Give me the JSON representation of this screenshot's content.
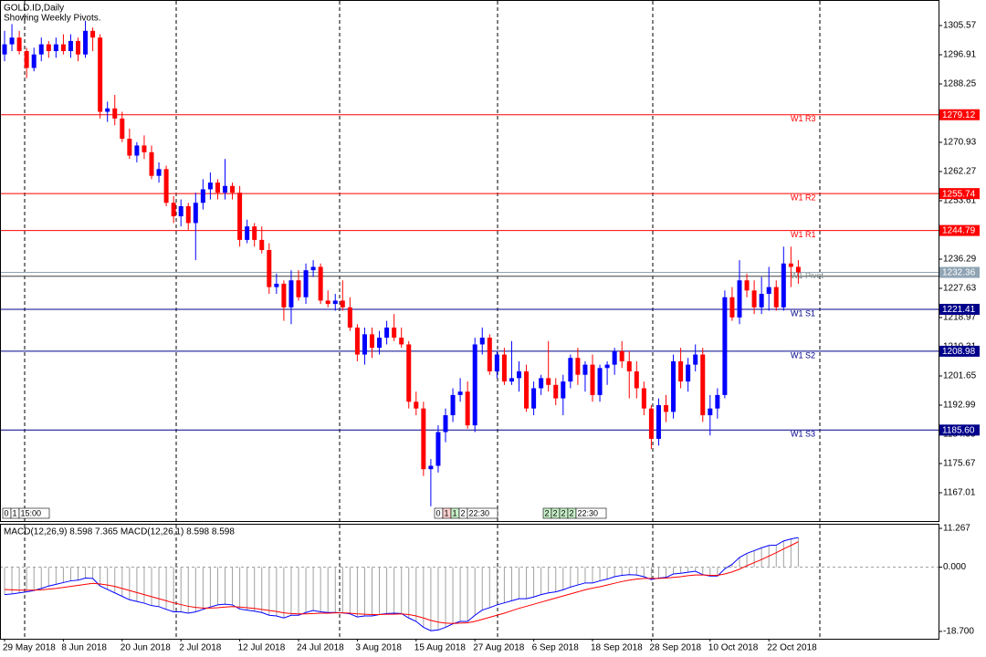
{
  "chart_data": {
    "type": "candlestick",
    "title": "GOLD.ID,Daily",
    "subtitle": "Showing Weekly Pivots.",
    "categories": [
      "29 May 2018",
      null,
      null,
      null,
      null,
      null,
      null,
      null,
      "8 Jun 2018",
      null,
      null,
      null,
      null,
      null,
      null,
      null,
      "20 Jun 2018",
      null,
      null,
      null,
      null,
      null,
      null,
      null,
      "2 Jul 2018",
      null,
      null,
      null,
      null,
      null,
      null,
      null,
      "12 Jul 2018",
      null,
      null,
      null,
      null,
      null,
      null,
      null,
      "24 Jul 2018",
      null,
      null,
      null,
      null,
      null,
      null,
      null,
      "3 Aug 2018",
      null,
      null,
      null,
      null,
      null,
      null,
      null,
      "15 Aug 2018",
      null,
      null,
      null,
      null,
      null,
      null,
      null,
      "27 Aug 2018",
      null,
      null,
      null,
      null,
      null,
      null,
      null,
      "6 Sep 2018",
      null,
      null,
      null,
      null,
      null,
      null,
      null,
      "18 Sep 2018",
      null,
      null,
      null,
      null,
      null,
      null,
      null,
      "28 Sep 2018",
      null,
      null,
      null,
      null,
      null,
      null,
      null,
      "10 Oct 2018",
      null,
      null,
      null,
      null,
      null,
      null,
      null,
      "22 Oct 2018",
      null,
      null,
      null,
      null
    ],
    "ohlc": [
      [
        1297,
        1304,
        1295,
        1300
      ],
      [
        1300,
        1306,
        1298,
        1302
      ],
      [
        1302,
        1304,
        1297,
        1298
      ],
      [
        1298,
        1299,
        1290,
        1293
      ],
      [
        1293,
        1299,
        1292,
        1297
      ],
      [
        1297,
        1302,
        1295,
        1300
      ],
      [
        1300,
        1301,
        1296,
        1298
      ],
      [
        1298,
        1302,
        1296,
        1300
      ],
      [
        1300,
        1303,
        1297,
        1298
      ],
      [
        1298,
        1303,
        1296,
        1301
      ],
      [
        1301,
        1302,
        1295,
        1297
      ],
      [
        1297,
        1307,
        1296,
        1304
      ],
      [
        1304,
        1305,
        1298,
        1302
      ],
      [
        1302,
        1303,
        1278,
        1280
      ],
      [
        1280,
        1283,
        1277,
        1281
      ],
      [
        1281,
        1285,
        1276,
        1278
      ],
      [
        1278,
        1280,
        1271,
        1272
      ],
      [
        1272,
        1275,
        1266,
        1267
      ],
      [
        1267,
        1271,
        1265,
        1270
      ],
      [
        1270,
        1273,
        1266,
        1268
      ],
      [
        1268,
        1270,
        1260,
        1261
      ],
      [
        1261,
        1265,
        1259,
        1263
      ],
      [
        1263,
        1264,
        1252,
        1253
      ],
      [
        1253,
        1255,
        1247,
        1249
      ],
      [
        1249,
        1254,
        1246,
        1252
      ],
      [
        1252,
        1253,
        1245,
        1247
      ],
      [
        1247,
        1256,
        1236,
        1253
      ],
      [
        1253,
        1260,
        1251,
        1257
      ],
      [
        1257,
        1262,
        1254,
        1259
      ],
      [
        1259,
        1260,
        1254,
        1256
      ],
      [
        1256,
        1266,
        1254,
        1258
      ],
      [
        1258,
        1259,
        1254,
        1256
      ],
      [
        1256,
        1258,
        1240,
        1242
      ],
      [
        1242,
        1248,
        1241,
        1246
      ],
      [
        1246,
        1247,
        1240,
        1242
      ],
      [
        1242,
        1246,
        1238,
        1239
      ],
      [
        1239,
        1241,
        1226,
        1228
      ],
      [
        1228,
        1232,
        1226,
        1229
      ],
      [
        1229,
        1230,
        1218,
        1222
      ],
      [
        1222,
        1233,
        1217,
        1230
      ],
      [
        1230,
        1233,
        1224,
        1225
      ],
      [
        1225,
        1235,
        1223,
        1233
      ],
      [
        1233,
        1236,
        1231,
        1234
      ],
      [
        1234,
        1235,
        1223,
        1224
      ],
      [
        1224,
        1227,
        1222,
        1223
      ],
      [
        1223,
        1226,
        1221,
        1224
      ],
      [
        1224,
        1230,
        1221,
        1222
      ],
      [
        1222,
        1225,
        1215,
        1216
      ],
      [
        1216,
        1217,
        1206,
        1208
      ],
      [
        1208,
        1216,
        1205,
        1214
      ],
      [
        1214,
        1216,
        1207,
        1210
      ],
      [
        1210,
        1215,
        1208,
        1213
      ],
      [
        1213,
        1218,
        1211,
        1216
      ],
      [
        1216,
        1220,
        1212,
        1213
      ],
      [
        1213,
        1216,
        1210,
        1211
      ],
      [
        1211,
        1212,
        1192,
        1194
      ],
      [
        1194,
        1197,
        1190,
        1192
      ],
      [
        1192,
        1194,
        1172,
        1174
      ],
      [
        1174,
        1177,
        1163,
        1175
      ],
      [
        1175,
        1187,
        1173,
        1185
      ],
      [
        1185,
        1192,
        1182,
        1190
      ],
      [
        1190,
        1198,
        1188,
        1196
      ],
      [
        1196,
        1201,
        1194,
        1197
      ],
      [
        1197,
        1200,
        1186,
        1187
      ],
      [
        1187,
        1213,
        1185,
        1211
      ],
      [
        1211,
        1216,
        1208,
        1213
      ],
      [
        1213,
        1214,
        1202,
        1203
      ],
      [
        1203,
        1209,
        1201,
        1208
      ],
      [
        1208,
        1210,
        1199,
        1200
      ],
      [
        1200,
        1212,
        1199,
        1201
      ],
      [
        1201,
        1206,
        1197,
        1203
      ],
      [
        1203,
        1205,
        1191,
        1192
      ],
      [
        1192,
        1200,
        1190,
        1198
      ],
      [
        1198,
        1202,
        1196,
        1201
      ],
      [
        1201,
        1212,
        1197,
        1199
      ],
      [
        1199,
        1201,
        1193,
        1195
      ],
      [
        1195,
        1202,
        1190,
        1200
      ],
      [
        1200,
        1208,
        1198,
        1207
      ],
      [
        1207,
        1210,
        1199,
        1202
      ],
      [
        1202,
        1206,
        1197,
        1205
      ],
      [
        1205,
        1208,
        1194,
        1196
      ],
      [
        1196,
        1205,
        1194,
        1204
      ],
      [
        1204,
        1206,
        1199,
        1205
      ],
      [
        1205,
        1210,
        1202,
        1209
      ],
      [
        1209,
        1212,
        1204,
        1206
      ],
      [
        1206,
        1209,
        1195,
        1203
      ],
      [
        1203,
        1206,
        1195,
        1198
      ],
      [
        1198,
        1200,
        1190,
        1192
      ],
      [
        1192,
        1193,
        1180,
        1183
      ],
      [
        1183,
        1195,
        1181,
        1193
      ],
      [
        1193,
        1196,
        1188,
        1191
      ],
      [
        1191,
        1208,
        1189,
        1206
      ],
      [
        1206,
        1210,
        1198,
        1200
      ],
      [
        1200,
        1207,
        1197,
        1205
      ],
      [
        1205,
        1211,
        1203,
        1208
      ],
      [
        1208,
        1210,
        1188,
        1190
      ],
      [
        1190,
        1196,
        1184,
        1192
      ],
      [
        1192,
        1198,
        1189,
        1196
      ],
      [
        1196,
        1227,
        1195,
        1225
      ],
      [
        1225,
        1228,
        1218,
        1219
      ],
      [
        1219,
        1236,
        1217,
        1230
      ],
      [
        1230,
        1232,
        1225,
        1227
      ],
      [
        1227,
        1230,
        1220,
        1222
      ],
      [
        1222,
        1231,
        1220,
        1226
      ],
      [
        1226,
        1234,
        1221,
        1228
      ],
      [
        1228,
        1230,
        1221,
        1222
      ],
      [
        1222,
        1240,
        1221,
        1235
      ],
      [
        1235,
        1240,
        1228,
        1234
      ],
      [
        1234,
        1236,
        1229,
        1232.36
      ]
    ],
    "up_color": "#0000ff",
    "down_color": "#ff0000",
    "ylim": [
      1158.62,
      1313.15
    ],
    "yticks": [
      1305.57,
      1296.91,
      1288.25,
      1270.93,
      1262.27,
      1253.61,
      1236.29,
      1227.63,
      1218.97,
      1210.31,
      1201.65,
      1192.99,
      1184.33,
      1175.67,
      1167.01
    ],
    "levels": [
      {
        "name": "W1 R3",
        "value": 1279.12,
        "color": "#ff0000"
      },
      {
        "name": "W1 R2",
        "value": 1255.74,
        "color": "#ff0000"
      },
      {
        "name": "W1 R1",
        "value": 1244.79,
        "color": "#ff0000"
      },
      {
        "name": "W1 S1",
        "value": 1221.41,
        "color": "#00008b"
      },
      {
        "name": "W1 S2",
        "value": 1208.98,
        "color": "#00008b"
      },
      {
        "name": "W1 S3",
        "value": 1185.6,
        "label": "1185.60",
        "color": "#00008b"
      }
    ],
    "pivot": {
      "name": "W1 Pivot",
      "value": 1231.2,
      "color": "#404040"
    },
    "price_line": {
      "value": 1232.36,
      "color": "#8fa3b3"
    },
    "session_labels": [
      [
        "0",
        "1",
        "15:00"
      ],
      [
        "0",
        "1",
        "1",
        "2",
        "22:30"
      ],
      [
        "2",
        "2",
        "2",
        "2",
        "22:30"
      ]
    ],
    "macd": {
      "title": "MACD(12,26,9) 8.598 7.365 MACD(12,26,1) 8.598 8.598",
      "values": [
        -8,
        -7.8,
        -7.5,
        -7.2,
        -6.8,
        -6.2,
        -5.5,
        -5,
        -4.5,
        -4,
        -3.8,
        -3.2,
        -3.3,
        -5.5,
        -6.5,
        -7.5,
        -8.5,
        -9.5,
        -10,
        -10.5,
        -11.2,
        -11.5,
        -12.3,
        -13,
        -13,
        -13.4,
        -13,
        -12.3,
        -11.6,
        -11,
        -10.8,
        -11,
        -12.2,
        -12.5,
        -12.8,
        -13.2,
        -14,
        -14.2,
        -14.8,
        -14,
        -14,
        -13.2,
        -12.6,
        -13,
        -13.2,
        -13.2,
        -13.3,
        -13.6,
        -14.5,
        -14.2,
        -14.2,
        -13.8,
        -13.5,
        -13.4,
        -13.5,
        -14.8,
        -15.8,
        -17.5,
        -18.5,
        -18.3,
        -17.5,
        -16.5,
        -15.8,
        -15.8,
        -14,
        -12.5,
        -11.8,
        -11,
        -10.4,
        -9.8,
        -9.2,
        -9.2,
        -8.7,
        -8,
        -7.5,
        -7.2,
        -6.6,
        -5.8,
        -5.2,
        -4.6,
        -4.6,
        -4,
        -3.5,
        -2.8,
        -2.4,
        -2.2,
        -2.3,
        -2.8,
        -3.6,
        -3.2,
        -3,
        -2,
        -1.8,
        -1.5,
        -1.2,
        -2.2,
        -2.6,
        -2.6,
        -0.5,
        0.8,
        2.8,
        4,
        4.8,
        5.6,
        6.3,
        6.4,
        7.6,
        8.2,
        8.598
      ],
      "signal": [
        -6.5,
        -6.6,
        -6.7,
        -6.7,
        -6.7,
        -6.6,
        -6.4,
        -6.2,
        -5.9,
        -5.6,
        -5.3,
        -5,
        -4.7,
        -4.9,
        -5.2,
        -5.6,
        -6.2,
        -6.8,
        -7.4,
        -8,
        -8.6,
        -9.2,
        -9.8,
        -10.4,
        -10.9,
        -11.4,
        -11.7,
        -11.9,
        -11.9,
        -11.8,
        -11.6,
        -11.5,
        -11.6,
        -11.8,
        -12,
        -12.3,
        -12.6,
        -12.9,
        -13.3,
        -13.5,
        -13.6,
        -13.6,
        -13.5,
        -13.4,
        -13.4,
        -13.3,
        -13.3,
        -13.4,
        -13.6,
        -13.7,
        -13.8,
        -13.8,
        -13.7,
        -13.7,
        -13.6,
        -13.8,
        -14.2,
        -14.8,
        -15.5,
        -16,
        -16.3,
        -16.4,
        -16.3,
        -16.2,
        -15.8,
        -15.2,
        -14.6,
        -14,
        -13.4,
        -12.7,
        -12,
        -11.4,
        -10.8,
        -10.2,
        -9.6,
        -9,
        -8.4,
        -7.8,
        -7.2,
        -6.6,
        -6.1,
        -5.7,
        -5.2,
        -4.7,
        -4.2,
        -3.8,
        -3.5,
        -3.3,
        -3.3,
        -3.3,
        -3.2,
        -3,
        -2.8,
        -2.5,
        -2.3,
        -2.3,
        -2.4,
        -2.4,
        -2,
        -1.4,
        -0.6,
        0.4,
        1.3,
        2.2,
        3.2,
        4.2,
        5.3,
        6.3,
        7.365
      ],
      "hist_color": "#a0a0a0",
      "line_color": "#0000ff",
      "signal_color": "#ff0000",
      "ylim": [
        -20.84,
        12.34
      ],
      "yticks": [
        11.267,
        {
          "value": 0,
          "label": "0.000"
        },
        {
          "value": -18.7,
          "label": "-18.700"
        }
      ]
    }
  }
}
